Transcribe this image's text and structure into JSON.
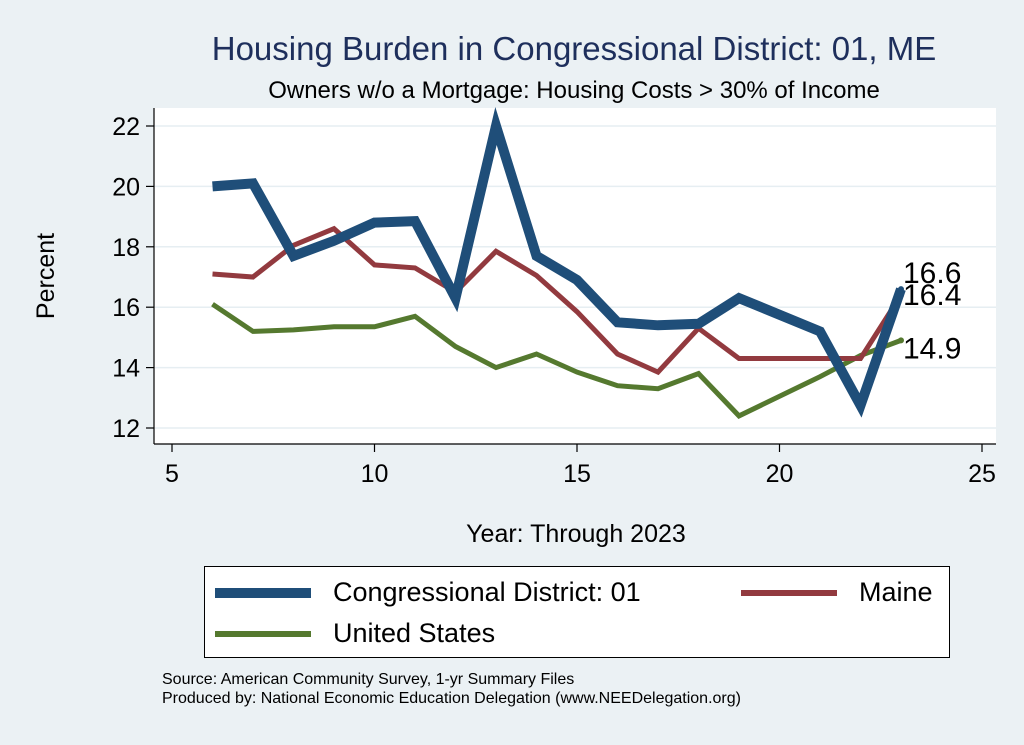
{
  "chart_data": {
    "type": "line",
    "title": "Housing Burden in Congressional District:  01, ME",
    "subtitle": "Owners w/o a Mortgage: Housing Costs > 30% of Income",
    "xlabel": "Year: Through 2023",
    "ylabel": "Percent",
    "xlim": [
      5,
      25
    ],
    "ylim": [
      12,
      22
    ],
    "xticks": [
      5,
      10,
      15,
      20,
      25
    ],
    "yticks": [
      12,
      14,
      16,
      18,
      20,
      22
    ],
    "grid": true,
    "legend_position": "bottom",
    "series": [
      {
        "name": "Congressional District:  01",
        "color": "#1f4e79",
        "x": [
          6,
          7,
          8,
          9,
          10,
          11,
          12,
          13,
          14,
          15,
          16,
          17,
          18,
          19,
          21,
          22,
          23
        ],
        "y": [
          20.0,
          20.1,
          17.7,
          18.2,
          18.8,
          18.85,
          16.3,
          22.0,
          17.7,
          16.9,
          15.5,
          15.4,
          15.45,
          16.3,
          15.2,
          12.75,
          16.6
        ],
        "end_label": "16.6"
      },
      {
        "name": "Maine",
        "color": "#923a3f",
        "x": [
          6,
          7,
          8,
          9,
          10,
          11,
          12,
          13,
          14,
          15,
          16,
          17,
          18,
          19,
          21,
          22,
          23
        ],
        "y": [
          17.1,
          17.0,
          18.05,
          18.6,
          17.4,
          17.3,
          16.5,
          17.85,
          17.05,
          15.85,
          14.45,
          13.85,
          15.3,
          14.3,
          14.3,
          14.3,
          16.4
        ],
        "end_label": "16.4"
      },
      {
        "name": "United States",
        "color": "#55792f",
        "x": [
          6,
          7,
          8,
          9,
          10,
          11,
          12,
          13,
          14,
          15,
          16,
          17,
          18,
          19,
          21,
          22,
          23
        ],
        "y": [
          16.1,
          15.2,
          15.25,
          15.35,
          15.35,
          15.7,
          14.7,
          14.0,
          14.45,
          13.85,
          13.4,
          13.3,
          13.8,
          12.4,
          13.7,
          14.4,
          14.9
        ],
        "end_label": "14.9"
      }
    ]
  },
  "source_lines": [
    "Source: American Community Survey, 1-yr Summary Files",
    "Produced by: National Economic Education Delegation (www.NEEDelegation.org)"
  ]
}
